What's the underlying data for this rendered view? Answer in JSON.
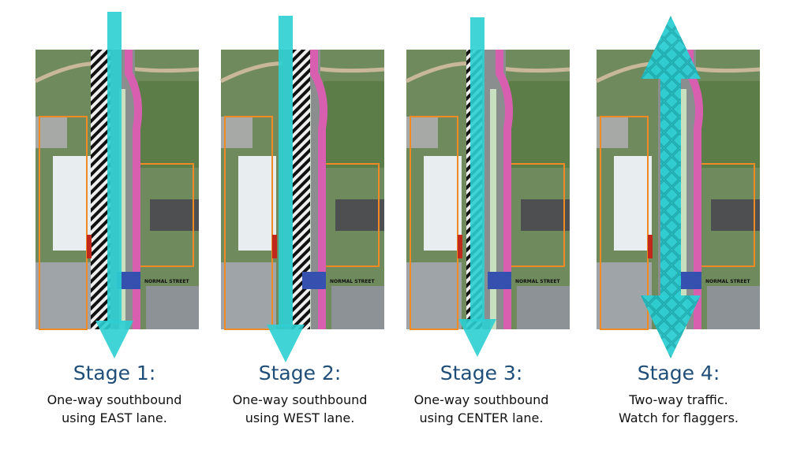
{
  "panels": [
    {
      "title": "Stage 1:",
      "lines": [
        "One-way southbound",
        "using EAST lane."
      ],
      "street_label": "NORMAL STREET"
    },
    {
      "title": "Stage 2:",
      "lines": [
        "One-way southbound",
        "using WEST lane."
      ],
      "street_label": "NORMAL STREET"
    },
    {
      "title": "Stage 3:",
      "lines": [
        "One-way southbound",
        "using CENTER lane."
      ],
      "street_label": "NORMAL STREET"
    },
    {
      "title": "Stage 4:",
      "lines": [
        "Two-way traffic.",
        "Watch for flaggers."
      ],
      "street_label": "NORMAL STREET"
    }
  ]
}
